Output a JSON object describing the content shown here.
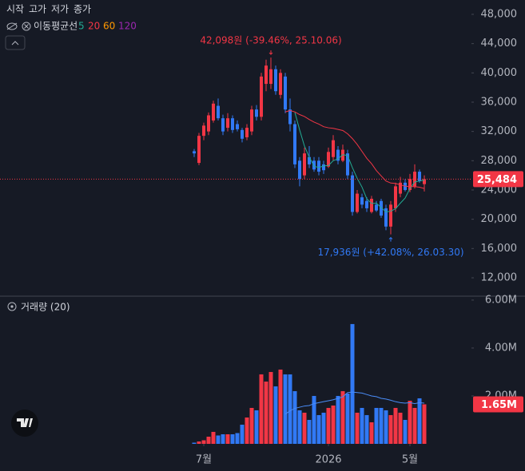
{
  "chart_data": [
    {
      "type": "candlestick",
      "ohlc_labels": [
        "시작",
        "고가",
        "저가",
        "종가"
      ],
      "ma_title": "이동평균선",
      "up_color": "#f23645",
      "down_color": "#3179f5",
      "open": [
        29300,
        27700,
        31400,
        32000,
        33500,
        35500,
        33800,
        32500,
        33800,
        33000,
        32200,
        31200,
        32000,
        35000,
        34000,
        38500,
        38500,
        40500,
        37000,
        39500,
        35000,
        33000,
        28000,
        26000,
        28500,
        28000,
        28000,
        27500,
        27200,
        28500,
        29500,
        28000,
        29000,
        26000,
        21000,
        23000,
        22500,
        21000,
        22000,
        22500,
        21500,
        19000,
        21500,
        23500,
        25000,
        24000,
        24500,
        26500,
        24800
      ],
      "high": [
        29600,
        31800,
        33200,
        34600,
        36200,
        36500,
        34300,
        34500,
        34200,
        33500,
        32500,
        33000,
        35500,
        35600,
        40000,
        41800,
        42098,
        41000,
        40500,
        40000,
        36500,
        33500,
        28500,
        29800,
        30000,
        28500,
        28500,
        28000,
        29800,
        31500,
        30000,
        30200,
        29500,
        26500,
        24000,
        23500,
        23000,
        23200,
        22500,
        22800,
        22000,
        22500,
        25000,
        25800,
        25500,
        26200,
        27500,
        26800,
        26000
      ],
      "low": [
        28500,
        27400,
        30800,
        31500,
        33200,
        33500,
        31500,
        32000,
        31800,
        32000,
        30500,
        30800,
        31500,
        33500,
        33500,
        37500,
        37800,
        37000,
        36500,
        34500,
        32000,
        27000,
        24500,
        25500,
        27000,
        26500,
        26000,
        26200,
        27000,
        28000,
        27500,
        27800,
        25500,
        20500,
        20800,
        21500,
        21000,
        20800,
        21000,
        20200,
        18500,
        17936,
        21000,
        23000,
        23800,
        23700,
        24200,
        25000,
        23800
      ],
      "close": [
        29000,
        31400,
        32800,
        34200,
        35800,
        33800,
        32000,
        33800,
        32200,
        32300,
        31000,
        32500,
        35000,
        34000,
        39500,
        41000,
        40500,
        37500,
        40000,
        35000,
        33000,
        27500,
        25500,
        29000,
        27500,
        26800,
        26500,
        26700,
        29200,
        30800,
        28000,
        29500,
        26000,
        21000,
        23500,
        22000,
        21500,
        22800,
        21200,
        20500,
        19000,
        22000,
        24500,
        25000,
        24000,
        25500,
        26500,
        25200,
        25484
      ],
      "moving_averages": [
        {
          "period": 5,
          "color": "#22ab94",
          "values": [
            null,
            null,
            null,
            null,
            null,
            null,
            null,
            null,
            null,
            null,
            null,
            null,
            null,
            null,
            null,
            null,
            null,
            null,
            null,
            null,
            null,
            34600,
            32200,
            30000,
            28500,
            27260,
            27060,
            27300,
            27340,
            28000,
            28240,
            28840,
            28700,
            27060,
            25600,
            24400,
            22800,
            22160,
            22200,
            21600,
            21000,
            21100,
            21440,
            22200,
            22900,
            24200,
            25100,
            25240,
            25337
          ]
        },
        {
          "period": 20,
          "color": "#f23645",
          "values": [
            null,
            null,
            null,
            null,
            null,
            null,
            null,
            null,
            null,
            null,
            null,
            null,
            null,
            null,
            null,
            null,
            null,
            null,
            null,
            34665,
            34865,
            34670,
            34305,
            34045,
            33630,
            33280,
            33005,
            32650,
            32500,
            32425,
            32275,
            32125,
            31675,
            31025,
            30225,
            29275,
            28325,
            27590,
            26650,
            25925,
            25225,
            24950,
            24900,
            24700,
            24525,
            24460,
            24460,
            24385,
            24199
          ]
        },
        {
          "period": 60,
          "color": "#ff9800"
        },
        {
          "period": 120,
          "color": "#9c27b0"
        }
      ],
      "max_label": "42,098원 (-39.46%, 25.10.06)",
      "min_label": "17,936원 (+42.08%, 26.03.30)",
      "last_close_label": "25,484",
      "ylim": [
        9600,
        49960
      ],
      "yticks": [
        {
          "value": 12000,
          "label": "12,000"
        },
        {
          "value": 16000,
          "label": "16,000"
        },
        {
          "value": 20000,
          "label": "20,000"
        },
        {
          "value": 24000,
          "label": "24,000"
        },
        {
          "value": 28000,
          "label": "28,000"
        },
        {
          "value": 32000,
          "label": "32,000"
        },
        {
          "value": 36000,
          "label": "36,000"
        },
        {
          "value": 40000,
          "label": "40,000"
        },
        {
          "value": 44000,
          "label": "44,000"
        },
        {
          "value": 48000,
          "label": "48,000"
        }
      ]
    },
    {
      "type": "bar",
      "title": "거래량 (20)",
      "values": [
        50000,
        100000,
        150000,
        300000,
        500000,
        350000,
        400000,
        400000,
        400000,
        450000,
        800000,
        1100000,
        1500000,
        1400000,
        2900000,
        2600000,
        3000000,
        2400000,
        3100000,
        2900000,
        2900000,
        2200000,
        1400000,
        1300000,
        1000000,
        2000000,
        1200000,
        1300000,
        1500000,
        1600000,
        2000000,
        2200000,
        2100000,
        5000000,
        1300000,
        1500000,
        1200000,
        900000,
        1500000,
        1500000,
        1400000,
        1200000,
        1500000,
        1300000,
        1000000,
        1800000,
        1500000,
        1900000,
        1650000
      ],
      "ma_color": "#4a8cf7",
      "ma_values": [
        null,
        null,
        null,
        null,
        null,
        null,
        null,
        null,
        null,
        null,
        null,
        null,
        null,
        null,
        null,
        null,
        null,
        null,
        null,
        1240000,
        1380000,
        1480000,
        1530000,
        1580000,
        1600000,
        1680000,
        1720000,
        1760000,
        1800000,
        1840000,
        1900000,
        1960000,
        2140000,
        2160000,
        2140000,
        2120000,
        2060000,
        2000000,
        1970000,
        1900000,
        1870000,
        1820000,
        1760000,
        1720000,
        1700000,
        1720000,
        1680000,
        1720000,
        1700000
      ],
      "last_value_label": "1.65M",
      "ylim": [
        0,
        6130000
      ],
      "yticks": [
        {
          "value": 2000000,
          "label": "2.00M"
        },
        {
          "value": 4000000,
          "label": "4.00M"
        },
        {
          "value": 6000000,
          "label": "6.00M"
        }
      ],
      "xticks": [
        {
          "value": 2,
          "label": "7월"
        },
        {
          "value": 28,
          "label": "2026"
        },
        {
          "value": 45,
          "label": "5월"
        }
      ]
    }
  ]
}
